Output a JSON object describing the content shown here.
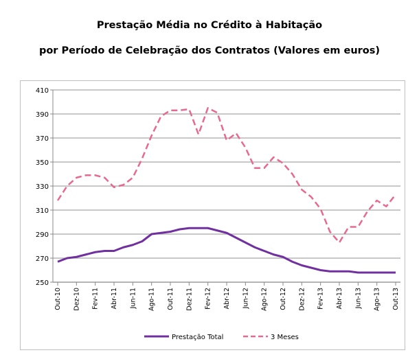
{
  "chart_data": {
    "type": "line",
    "title": "Prestação Média no Crédito à Habitação",
    "subtitle": "por Período de Celebração dos Contratos (Valores em euros)",
    "categories": [
      "Out-10",
      "Nov-10",
      "Dez-10",
      "Jan-11",
      "Fev-11",
      "Mar-11",
      "Abr-11",
      "Mai-11",
      "Jun-11",
      "Jul-11",
      "Ago-11",
      "Set-11",
      "Out-11",
      "Nov-11",
      "Dez-11",
      "Jan-12",
      "Fev-12",
      "Mar-12",
      "Abr-12",
      "Mai-12",
      "Jun-12",
      "Jul-12",
      "Ago-12",
      "Set-12",
      "Out-12",
      "Nov-12",
      "Dez-12",
      "Jan-13",
      "Fev-13",
      "Mar-13",
      "Abr-13",
      "Mai-13",
      "Jun-13",
      "Jul-13",
      "Ago-13",
      "Set-13",
      "Out-13"
    ],
    "tick_labels": [
      "Out-10",
      "Dez-10",
      "Fev-11",
      "Abr-11",
      "Jun-11",
      "Ago-11",
      "Out-11",
      "Dez-11",
      "Fev-12",
      "Abr-12",
      "Jun-12",
      "Ago-12",
      "Out-12",
      "Dez-12",
      "Fev-13",
      "Abr-13",
      "Jun-13",
      "Ago-13",
      "Out-13"
    ],
    "y_ticks": [
      "250",
      "270",
      "290",
      "310",
      "330",
      "350",
      "370",
      "390",
      "410"
    ],
    "ylim": [
      250,
      410
    ],
    "grid": true,
    "legend_placement": "bottom",
    "series": [
      {
        "name": "Prestação Total",
        "color": "#7030a0",
        "style": "solid",
        "values": [
          267,
          270,
          271,
          273,
          275,
          276,
          276,
          279,
          281,
          284,
          290,
          291,
          292,
          294,
          295,
          295,
          295,
          293,
          291,
          287,
          283,
          279,
          276,
          273,
          271,
          267,
          264,
          262,
          260,
          259,
          259,
          259,
          258,
          258,
          258,
          258,
          258
        ]
      },
      {
        "name": "3 Meses",
        "color": "#e8698f",
        "style": "dashed",
        "values": [
          318,
          330,
          337,
          339,
          339,
          337,
          329,
          331,
          337,
          353,
          372,
          388,
          393,
          393,
          394,
          373,
          395,
          391,
          368,
          374,
          362,
          345,
          345,
          354,
          349,
          340,
          327,
          321,
          311,
          292,
          283,
          296,
          296,
          309,
          318,
          313,
          323
        ]
      }
    ]
  }
}
